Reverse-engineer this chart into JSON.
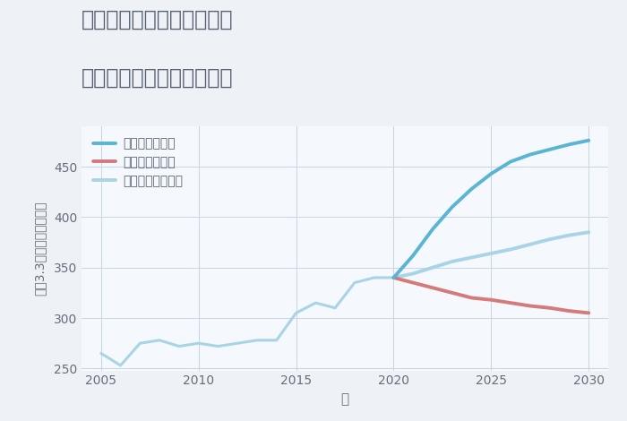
{
  "title_line1": "神奈川県川崎市幸区戸手の",
  "title_line2": "中古マンションの価格推移",
  "xlabel": "年",
  "ylabel": "坪（3.3㎡）単価（万円）",
  "background_color": "#eef2f7",
  "plot_bg_color": "#f5f8fc",
  "grid_color": "#c5d5e8",
  "xlim": [
    2004,
    2031
  ],
  "ylim": [
    248,
    490
  ],
  "yticks": [
    250,
    300,
    350,
    400,
    450
  ],
  "xticks": [
    2005,
    2010,
    2015,
    2020,
    2025,
    2030
  ],
  "good_x": [
    2005,
    2006,
    2007,
    2008,
    2009,
    2010,
    2011,
    2012,
    2013,
    2014,
    2015,
    2016,
    2017,
    2018,
    2019,
    2020,
    2021,
    2022,
    2023,
    2024,
    2025,
    2026,
    2027,
    2028,
    2029,
    2030
  ],
  "good_y": [
    265,
    253,
    275,
    278,
    272,
    275,
    272,
    275,
    278,
    278,
    305,
    315,
    310,
    335,
    340,
    340,
    362,
    388,
    410,
    428,
    443,
    455,
    462,
    467,
    472,
    476
  ],
  "bad_x": [
    2020,
    2021,
    2022,
    2023,
    2024,
    2025,
    2026,
    2027,
    2028,
    2029,
    2030
  ],
  "bad_y": [
    340,
    335,
    330,
    325,
    320,
    318,
    315,
    312,
    310,
    307,
    305
  ],
  "normal_x": [
    2020,
    2021,
    2022,
    2023,
    2024,
    2025,
    2026,
    2027,
    2028,
    2029,
    2030
  ],
  "normal_y": [
    340,
    344,
    350,
    356,
    360,
    364,
    368,
    373,
    378,
    382,
    385
  ],
  "good_color": "#5ab4d4",
  "bad_color": "#d47a7a",
  "normal_color": "#a8d4e6",
  "good_label": "グッドシナリオ",
  "bad_label": "バッドシナリオ",
  "normal_label": "ノーマルシナリオ",
  "title_color": "#555f6e",
  "axis_color": "#666e7a",
  "legend_color": "#555f6e"
}
